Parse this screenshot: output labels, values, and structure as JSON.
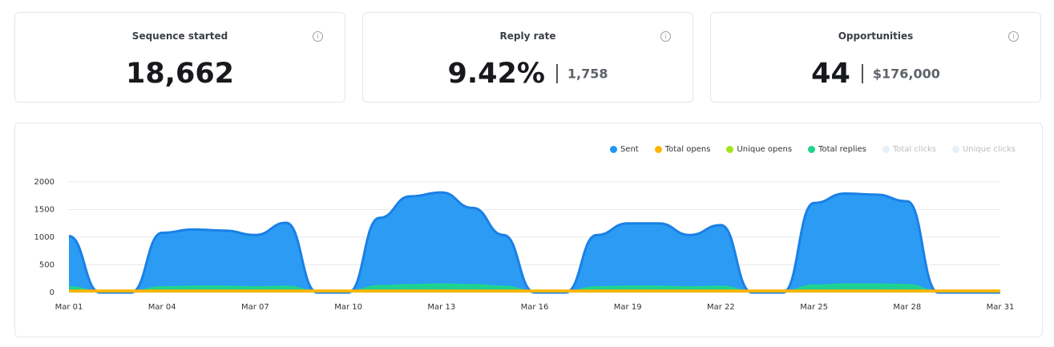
{
  "cards": [
    {
      "title": "Sequence started",
      "value": "18,662"
    },
    {
      "title": "Reply rate",
      "value": "9.42%",
      "secondary": "1,758"
    },
    {
      "title": "Opportunities",
      "value": "44",
      "secondary": "$176,000"
    }
  ],
  "chart_data": {
    "type": "area",
    "categories": [
      "Mar 01",
      null,
      null,
      "Mar 04",
      null,
      null,
      "Mar 07",
      null,
      null,
      "Mar 10",
      null,
      null,
      "Mar 13",
      null,
      null,
      "Mar 16",
      null,
      null,
      "Mar 19",
      null,
      null,
      "Mar 22",
      null,
      null,
      "Mar 25",
      null,
      null,
      "Mar 28",
      null,
      null,
      "Mar 31"
    ],
    "ylim": [
      0,
      2000
    ],
    "yticks": [
      0,
      500,
      1000,
      1500,
      2000
    ],
    "grid": true,
    "legend": "top-right",
    "series": [
      {
        "name": "Sent",
        "color": "#2196f3",
        "values": [
          1020,
          0,
          0,
          1080,
          1140,
          1120,
          1040,
          1260,
          0,
          0,
          1350,
          1740,
          1810,
          1530,
          1040,
          0,
          0,
          1040,
          1250,
          1250,
          1040,
          1220,
          0,
          0,
          1620,
          1790,
          1770,
          1650,
          0,
          0,
          0
        ]
      },
      {
        "name": "Total opens",
        "color": "#ffb300",
        "values": [
          40,
          40,
          40,
          40,
          40,
          40,
          40,
          40,
          40,
          40,
          40,
          40,
          40,
          40,
          40,
          40,
          40,
          40,
          40,
          40,
          40,
          40,
          40,
          40,
          40,
          40,
          40,
          40,
          40,
          40,
          40
        ]
      },
      {
        "name": "Unique opens",
        "color": "#a4e31c",
        "values": [
          30,
          30,
          30,
          30,
          30,
          30,
          30,
          30,
          30,
          30,
          30,
          30,
          30,
          30,
          30,
          30,
          30,
          30,
          30,
          30,
          30,
          30,
          30,
          30,
          30,
          30,
          30,
          30,
          30,
          30,
          30
        ]
      },
      {
        "name": "Total replies",
        "color": "#1ed68a",
        "values": [
          100,
          20,
          20,
          100,
          110,
          110,
          100,
          110,
          20,
          20,
          120,
          140,
          150,
          140,
          110,
          20,
          20,
          100,
          110,
          110,
          100,
          110,
          20,
          20,
          130,
          150,
          150,
          140,
          20,
          20,
          20
        ]
      },
      {
        "name": "Total clicks",
        "color": "#e6f0fa",
        "visible": false
      },
      {
        "name": "Unique clicks",
        "color": "#e6f0fa",
        "visible": false
      }
    ]
  }
}
